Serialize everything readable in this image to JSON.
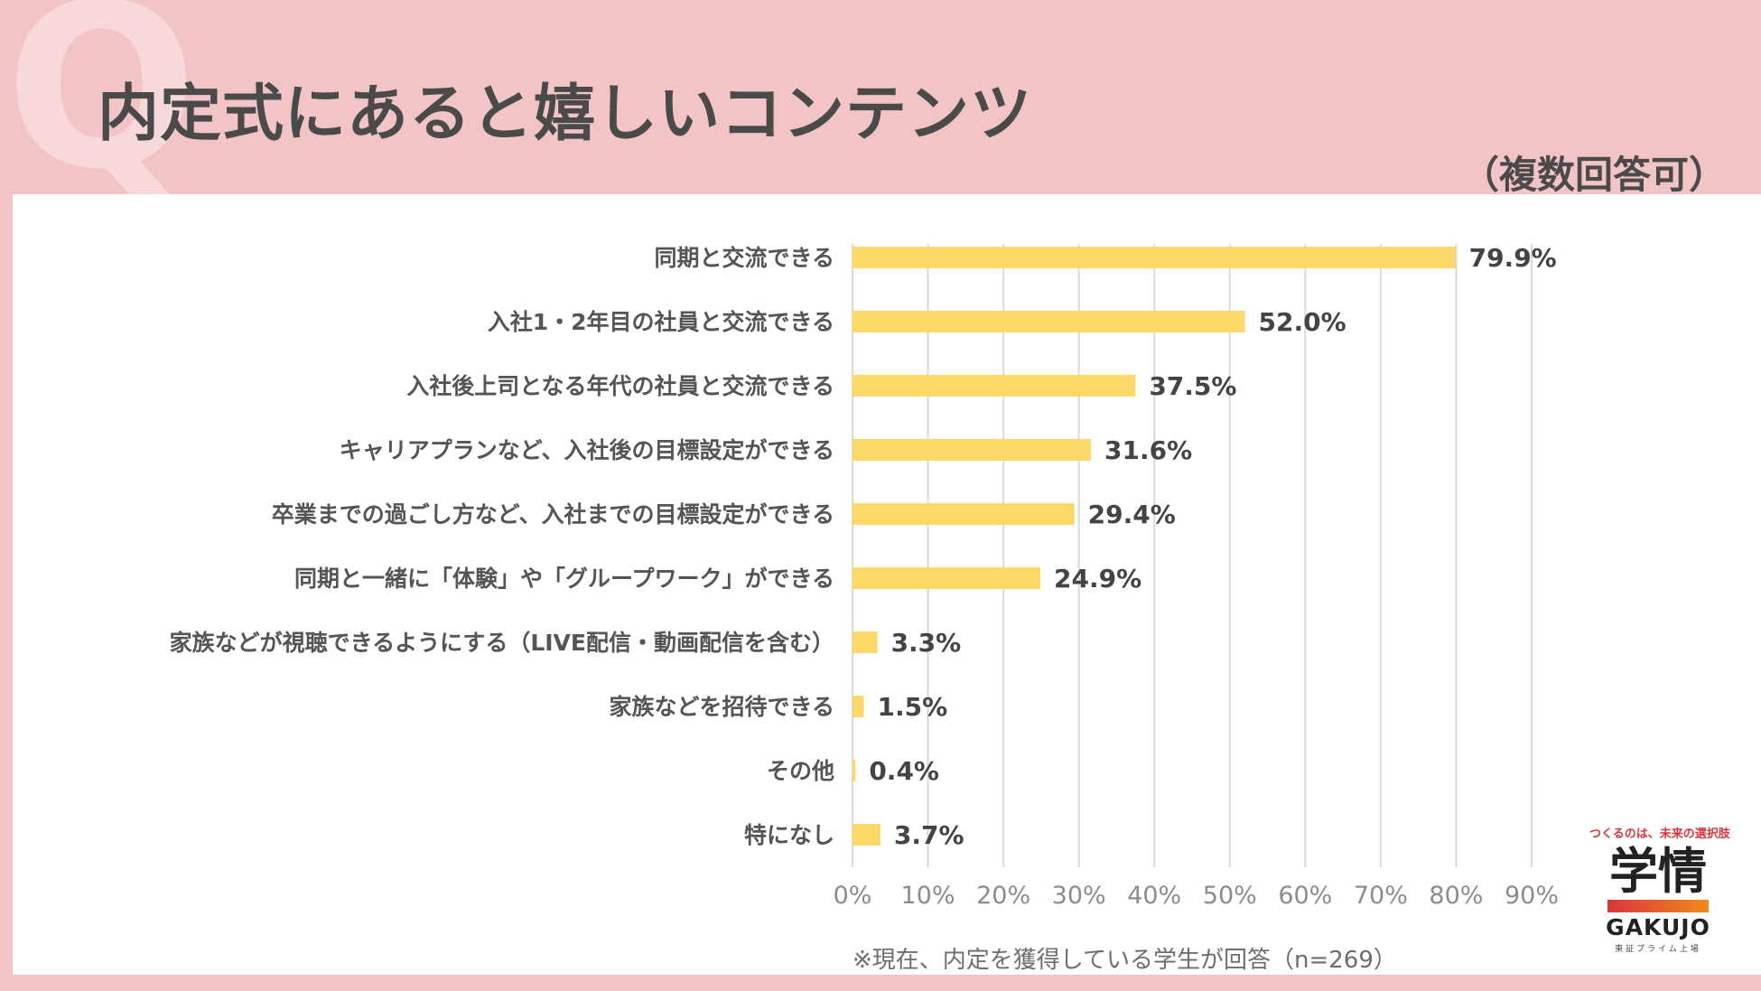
{
  "header": {
    "q_letter": "Q",
    "title": "内定式にあると嬉しいコンテンツ",
    "subtitle": "（複数回答可）"
  },
  "footer": {
    "note": "※現在、内定を獲得している学生が回答（n=269）"
  },
  "logo": {
    "tagline": "つくるのは、未来の選択肢",
    "kanji": "学情",
    "english": "GAKUJO",
    "sub": "東証プライム上場"
  },
  "colors": {
    "background": "#f2c4c5",
    "bar": "#fdd96a",
    "grid": "#d9d9d9"
  },
  "chart_data": {
    "type": "bar",
    "orientation": "horizontal",
    "title": "内定式にあると嬉しいコンテンツ",
    "categories": [
      "同期と交流できる",
      "入社1・2年目の社員と交流できる",
      "入社後上司となる年代の社員と交流できる",
      "キャリアプランなど、入社後の目標設定ができる",
      "卒業までの過ごし方など、入社までの目標設定ができる",
      "同期と一緒に「体験」や「グループワーク」ができる",
      "家族などが視聴できるようにする（LIVE配信・動画配信を含む）",
      "家族などを招待できる",
      "その他",
      "特になし"
    ],
    "values": [
      79.9,
      52.0,
      37.5,
      31.6,
      29.4,
      24.9,
      3.3,
      1.5,
      0.4,
      3.7
    ],
    "value_labels": [
      "79.9%",
      "52.0%",
      "37.5%",
      "31.6%",
      "29.4%",
      "24.9%",
      "3.3%",
      "1.5%",
      "0.4%",
      "3.7%"
    ],
    "xlim": [
      0,
      90
    ],
    "xticks": [
      0,
      10,
      20,
      30,
      40,
      50,
      60,
      70,
      80,
      90
    ],
    "xtick_labels": [
      "0%",
      "10%",
      "20%",
      "30%",
      "40%",
      "50%",
      "60%",
      "70%",
      "80%",
      "90%"
    ],
    "grid": true,
    "legend": "none"
  }
}
